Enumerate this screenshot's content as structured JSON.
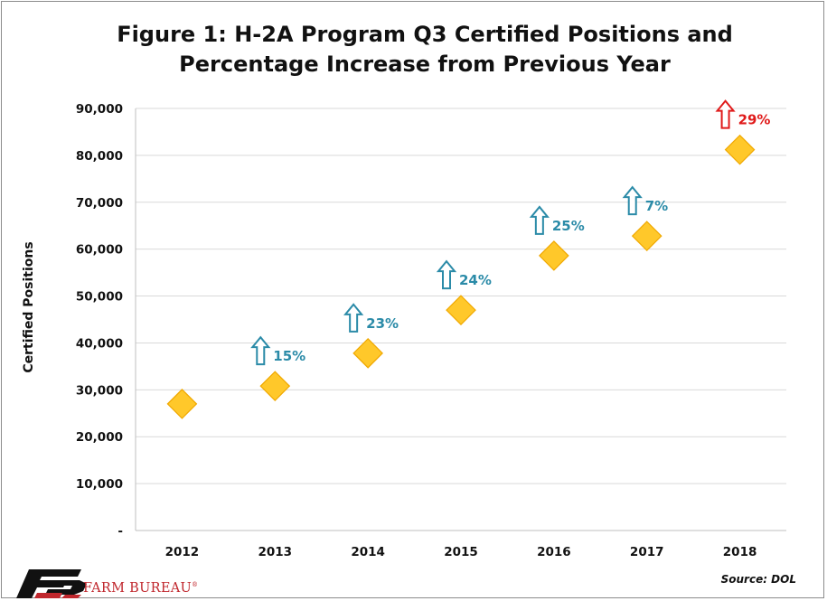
{
  "chart_data": {
    "type": "scatter",
    "title_lines": [
      "Figure 1: H-2A Program Q3 Certified Positions and",
      "Percentage Increase from Previous Year"
    ],
    "ylabel": "Certified Positions",
    "xlabel": "",
    "categories": [
      "2012",
      "2013",
      "2014",
      "2015",
      "2016",
      "2017",
      "2018"
    ],
    "values": [
      27000,
      30800,
      37800,
      47000,
      58600,
      62800,
      81200
    ],
    "pct_increase": [
      "",
      "15%",
      "23%",
      "24%",
      "25%",
      "7%",
      "29%"
    ],
    "ylim": [
      0,
      90000
    ],
    "y_ticks": [
      0,
      10000,
      20000,
      30000,
      40000,
      50000,
      60000,
      70000,
      80000,
      90000
    ],
    "y_tick_labels": [
      "-",
      "10,000",
      "20,000",
      "30,000",
      "40,000",
      "50,000",
      "60,000",
      "70,000",
      "80,000",
      "90,000"
    ],
    "grid": true,
    "marker": "diamond",
    "colors": {
      "marker_fill": "#ffc82a",
      "marker_edge": "#f0a800",
      "arrow_normal": "#2b8ba8",
      "arrow_highlight": "#e01b1b",
      "grid": "#d9d9d9"
    },
    "highlight_index": 6
  },
  "footer": {
    "source": "Source: DOL",
    "brand": "FARM BUREAU",
    "brand_mark": "®"
  }
}
